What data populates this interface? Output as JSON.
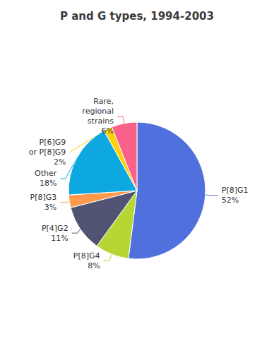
{
  "chart_data": {
    "type": "pie",
    "title": "P and G types, 1994-2003",
    "categories": [
      "P[8]G1",
      "P[8]G4",
      "P[4]G2",
      "P[8]G3",
      "Other",
      "P[6]G9\nor P[8]G9",
      "Rare,\nregional\nstrains"
    ],
    "values": [
      52,
      8,
      11,
      3,
      18,
      2,
      6
    ],
    "value_labels": [
      "52%",
      "8%",
      "11%",
      "3%",
      "18%",
      "2%",
      "6%"
    ],
    "data_labels": true
  }
}
